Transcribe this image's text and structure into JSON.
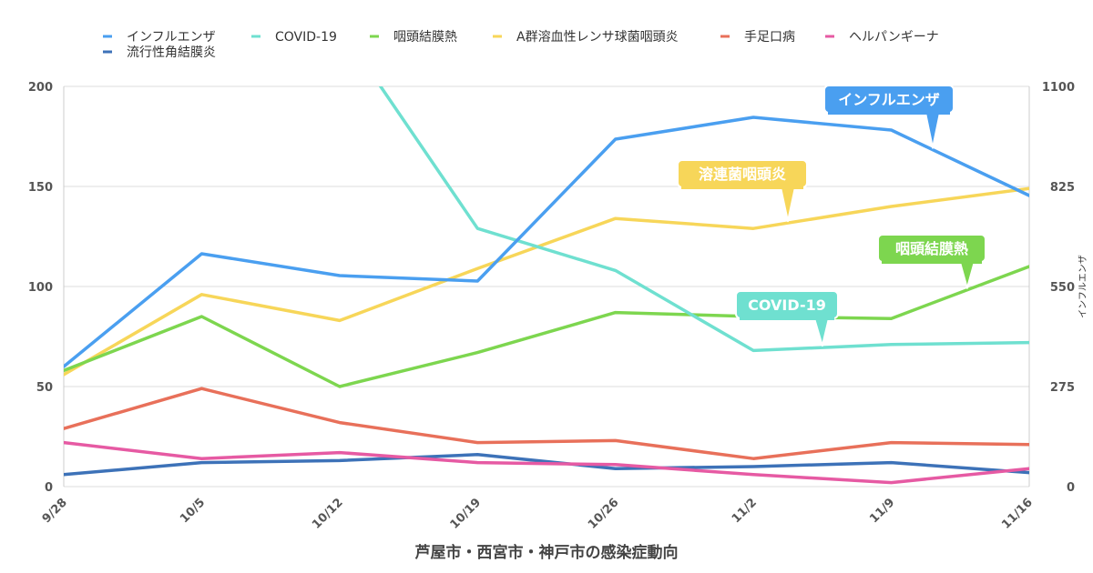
{
  "chart_data": {
    "type": "line",
    "title": "芦屋市・西宮市・神戸市の感染症動向",
    "categories": [
      "9/28",
      "10/5",
      "10/12",
      "10/19",
      "10/26",
      "11/2",
      "11/9",
      "11/16"
    ],
    "ylim": [
      0,
      200
    ],
    "yticks": [
      0,
      50,
      100,
      150,
      200
    ],
    "y2label": "インフルエンザ",
    "y2lim": [
      0,
      1100
    ],
    "y2ticks": [
      0,
      275,
      550,
      825,
      1100
    ],
    "grid": true,
    "legend_position": "top",
    "series": [
      {
        "name": "インフルエンザ",
        "color": "#4a9ff0",
        "axis": "right",
        "values": [
          330,
          640,
          580,
          565,
          955,
          1015,
          980,
          800
        ]
      },
      {
        "name": "COVID-19",
        "color": "#6fe0d0",
        "axis": "left",
        "values": [
          null,
          null,
          230,
          129,
          108,
          68,
          71,
          72
        ]
      },
      {
        "name": "咽頭結膜熱",
        "color": "#7dd64f",
        "axis": "left",
        "values": [
          58,
          85,
          50,
          67,
          87,
          85,
          84,
          110
        ]
      },
      {
        "name": "A群溶血性レンサ球菌咽頭炎",
        "color": "#f7d659",
        "axis": "left",
        "values": [
          56,
          96,
          83,
          109,
          134,
          129,
          140,
          149
        ]
      },
      {
        "name": "手足口病",
        "color": "#e8705a",
        "axis": "left",
        "values": [
          29,
          49,
          32,
          22,
          23,
          14,
          22,
          21
        ]
      },
      {
        "name": "ヘルパンギーナ",
        "color": "#e65aa3",
        "axis": "left",
        "values": [
          22,
          14,
          17,
          12,
          11,
          6,
          2,
          9
        ]
      },
      {
        "name": "流行性角結膜炎",
        "color": "#3d72b8",
        "axis": "left",
        "values": [
          6,
          12,
          13,
          16,
          9,
          10,
          12,
          7
        ]
      }
    ],
    "annotations": [
      {
        "text": "インフルエンザ",
        "series": 0,
        "at": 6.3
      },
      {
        "text": "溶連菌咽頭炎",
        "series": 3,
        "at": 5.25
      },
      {
        "text": "咽頭結膜熱",
        "series": 2,
        "at": 6.55
      },
      {
        "text": "COVID-19",
        "series": 1,
        "at": 5.5
      }
    ]
  }
}
